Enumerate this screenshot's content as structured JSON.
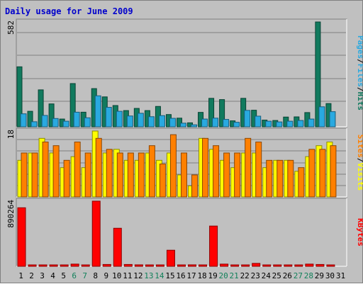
{
  "title": "Daily usage for June 2009",
  "colors": {
    "background": "#c0c0c0",
    "title": "#0000cc",
    "hits": "#117a5e",
    "files": "#29a9e0",
    "pages": "#29a9e0",
    "visits": "#ffff00",
    "sites": "#ff8000",
    "kbytes": "#ff0000",
    "day_normal": "#000000",
    "day_weekend": "#11805a"
  },
  "chart_data": [
    {
      "type": "bar",
      "panel": "hits-files-pages",
      "ylim": [
        0,
        582
      ],
      "y_max_label": "582",
      "legend": [
        {
          "name": "Pages",
          "color": "#29a9e0"
        },
        {
          "name": "Files",
          "color": "#29a9e0"
        },
        {
          "name": "Hits",
          "color": "#117a5e"
        }
      ],
      "categories": [
        "1",
        "2",
        "3",
        "4",
        "5",
        "6",
        "7",
        "8",
        "9",
        "10",
        "11",
        "12",
        "13",
        "14",
        "15",
        "16",
        "17",
        "18",
        "19",
        "20",
        "21",
        "22",
        "23",
        "24",
        "25",
        "26",
        "27",
        "28",
        "29",
        "30",
        "31"
      ],
      "series": [
        {
          "name": "Hits",
          "values": [
            333,
            86,
            205,
            127,
            43,
            240,
            81,
            212,
            166,
            118,
            90,
            102,
            90,
            113,
            68,
            48,
            22,
            80,
            158,
            151,
            33,
            158,
            92,
            37,
            35,
            54,
            55,
            79,
            582,
            129,
            0
          ]
        },
        {
          "name": "Files",
          "values": [
            72,
            28,
            63,
            46,
            31,
            81,
            50,
            172,
            108,
            86,
            60,
            75,
            56,
            62,
            47,
            20,
            11,
            43,
            48,
            41,
            25,
            91,
            59,
            31,
            27,
            31,
            35,
            43,
            111,
            84,
            0
          ]
        },
        {
          "name": "Pages",
          "values": [
            0,
            0,
            0,
            0,
            0,
            0,
            0,
            0,
            0,
            0,
            0,
            0,
            0,
            0,
            0,
            0,
            0,
            0,
            0,
            0,
            0,
            0,
            0,
            0,
            0,
            0,
            0,
            0,
            0,
            0,
            0
          ]
        }
      ]
    },
    {
      "type": "bar",
      "panel": "visits-sites",
      "ylim": [
        0,
        18
      ],
      "y_max_label": "18",
      "legend": [
        {
          "name": "Sites",
          "color": "#ff8000"
        },
        {
          "name": "Visits",
          "color": "#ffff00"
        }
      ],
      "categories": [
        "1",
        "2",
        "3",
        "4",
        "5",
        "6",
        "7",
        "8",
        "9",
        "10",
        "11",
        "12",
        "13",
        "14",
        "15",
        "16",
        "17",
        "18",
        "19",
        "20",
        "21",
        "22",
        "23",
        "24",
        "25",
        "26",
        "27",
        "28",
        "29",
        "30",
        "31"
      ],
      "series": [
        {
          "name": "Visits",
          "values": [
            10,
            12,
            16,
            12,
            8,
            11,
            8,
            18,
            12,
            13,
            10,
            10,
            12,
            10,
            12,
            6,
            3,
            16,
            13,
            10,
            8,
            12,
            12,
            8,
            10,
            10,
            7,
            11,
            14,
            15,
            0
          ]
        },
        {
          "name": "Sites",
          "values": [
            12,
            12,
            15,
            14,
            10,
            15,
            12,
            16,
            13,
            12,
            12,
            12,
            14,
            9,
            17,
            12,
            6,
            16,
            14,
            12,
            12,
            16,
            15,
            10,
            10,
            10,
            8,
            13,
            13,
            14,
            0
          ]
        }
      ]
    },
    {
      "type": "bar",
      "panel": "kbytes",
      "ylim": [
        0,
        890264
      ],
      "y_max_label": "890264",
      "legend": [
        {
          "name": "KBytes",
          "color": "#ff0000"
        }
      ],
      "categories": [
        "1",
        "2",
        "3",
        "4",
        "5",
        "6",
        "7",
        "8",
        "9",
        "10",
        "11",
        "12",
        "13",
        "14",
        "15",
        "16",
        "17",
        "18",
        "19",
        "20",
        "21",
        "22",
        "23",
        "24",
        "25",
        "26",
        "27",
        "28",
        "29",
        "30",
        "31"
      ],
      "series": [
        {
          "name": "KBytes",
          "values": [
            800000,
            12000,
            12000,
            12000,
            12000,
            30000,
            12000,
            890264,
            25000,
            520000,
            25000,
            20000,
            12000,
            12000,
            220000,
            12000,
            20000,
            15000,
            550000,
            30000,
            12000,
            12000,
            40000,
            12000,
            12000,
            12000,
            12000,
            30000,
            25000,
            15000,
            0
          ]
        }
      ]
    }
  ],
  "x_labels": [
    {
      "label": "1",
      "weekend": false
    },
    {
      "label": "2",
      "weekend": false
    },
    {
      "label": "3",
      "weekend": false
    },
    {
      "label": "4",
      "weekend": false
    },
    {
      "label": "5",
      "weekend": false
    },
    {
      "label": "6",
      "weekend": true
    },
    {
      "label": "7",
      "weekend": true
    },
    {
      "label": "8",
      "weekend": false
    },
    {
      "label": "9",
      "weekend": false
    },
    {
      "label": "10",
      "weekend": false
    },
    {
      "label": "11",
      "weekend": false
    },
    {
      "label": "12",
      "weekend": false
    },
    {
      "label": "13",
      "weekend": true
    },
    {
      "label": "14",
      "weekend": true
    },
    {
      "label": "15",
      "weekend": false
    },
    {
      "label": "16",
      "weekend": false
    },
    {
      "label": "17",
      "weekend": false
    },
    {
      "label": "18",
      "weekend": false
    },
    {
      "label": "19",
      "weekend": false
    },
    {
      "label": "20",
      "weekend": true
    },
    {
      "label": "21",
      "weekend": true
    },
    {
      "label": "22",
      "weekend": false
    },
    {
      "label": "23",
      "weekend": false
    },
    {
      "label": "24",
      "weekend": false
    },
    {
      "label": "25",
      "weekend": false
    },
    {
      "label": "26",
      "weekend": false
    },
    {
      "label": "27",
      "weekend": true
    },
    {
      "label": "28",
      "weekend": true
    },
    {
      "label": "29",
      "weekend": false
    },
    {
      "label": "30",
      "weekend": false
    },
    {
      "label": "31",
      "weekend": false
    }
  ]
}
